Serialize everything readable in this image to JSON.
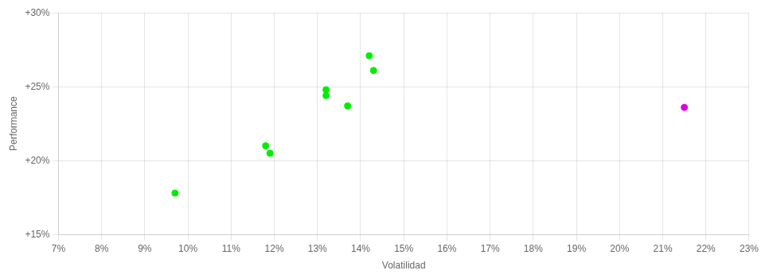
{
  "chart_data": {
    "type": "scatter",
    "xlabel": "Volatilidad",
    "ylabel": "Performance",
    "xlim": [
      0.07,
      0.23
    ],
    "ylim": [
      0.15,
      0.3
    ],
    "xticks": [
      {
        "value": 0.07,
        "label": "7%"
      },
      {
        "value": 0.08,
        "label": "8%"
      },
      {
        "value": 0.09,
        "label": "9%"
      },
      {
        "value": 0.1,
        "label": "10%"
      },
      {
        "value": 0.11,
        "label": "11%"
      },
      {
        "value": 0.12,
        "label": "12%"
      },
      {
        "value": 0.13,
        "label": "13%"
      },
      {
        "value": 0.14,
        "label": "14%"
      },
      {
        "value": 0.15,
        "label": "15%"
      },
      {
        "value": 0.16,
        "label": "16%"
      },
      {
        "value": 0.17,
        "label": "17%"
      },
      {
        "value": 0.18,
        "label": "18%"
      },
      {
        "value": 0.19,
        "label": "19%"
      },
      {
        "value": 0.2,
        "label": "20%"
      },
      {
        "value": 0.21,
        "label": "21%"
      },
      {
        "value": 0.22,
        "label": "22%"
      },
      {
        "value": 0.23,
        "label": "23%"
      }
    ],
    "yticks": [
      {
        "value": 0.15,
        "label": "+15%"
      },
      {
        "value": 0.2,
        "label": "+20%"
      },
      {
        "value": 0.25,
        "label": "+25%"
      },
      {
        "value": 0.3,
        "label": "+30%"
      }
    ],
    "grid": true,
    "series": [
      {
        "color": "#00ee00",
        "x": [
          0.097,
          0.118,
          0.119,
          0.132,
          0.132,
          0.137,
          0.142,
          0.143
        ],
        "values": [
          0.178,
          0.21,
          0.205,
          0.248,
          0.244,
          0.237,
          0.271,
          0.261
        ]
      },
      {
        "color": "#dd00dd",
        "x": [
          0.215
        ],
        "values": [
          0.236
        ]
      }
    ]
  }
}
